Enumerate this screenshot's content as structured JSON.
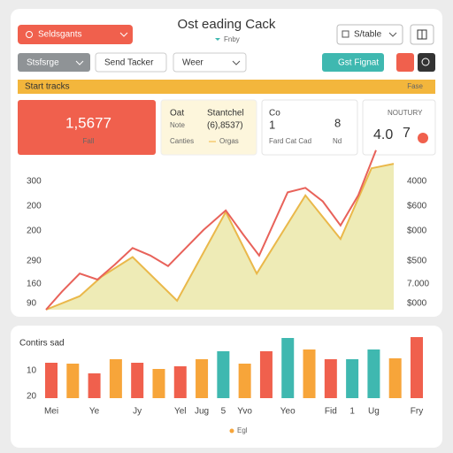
{
  "header": {
    "dropdown": "Seldsgants",
    "title": "Ost eading Cack",
    "subtitle": "Fnby",
    "view_select": "S/table"
  },
  "toolbar": {
    "filter": "Stsfsrge",
    "button": "Send Tacker",
    "period": "Weer",
    "action": "Gst Fignat"
  },
  "banner": {
    "text": "Start tracks",
    "right": "Fase"
  },
  "kpis": [
    {
      "value": "1,5677",
      "label": "Fall"
    },
    {
      "lines": [
        "Oat",
        "Note",
        "Canties"
      ],
      "detail": [
        "Stantchel",
        "(6),8537)",
        "Orgas"
      ]
    },
    {
      "lines": [
        "Co",
        "1",
        "Fard Cat Cad"
      ],
      "detail": [
        "8",
        "Nd"
      ]
    },
    {
      "title": "NOUTURY",
      "value": "4.0",
      "value2": "7"
    }
  ],
  "chart_data": [
    {
      "type": "line",
      "left_axis_labels": [
        "300",
        "200",
        "200",
        "290",
        "160",
        "90"
      ],
      "right_axis_labels": [
        "4000",
        "$600",
        "$000",
        "$500",
        "7.000",
        "$000"
      ],
      "xlim": [
        0,
        100
      ],
      "ylim": [
        0,
        110
      ],
      "series": [
        {
          "color": "#e8625a",
          "x": [
            0,
            4.6,
            9.7,
            14.8,
            19.8,
            24.9,
            30.0,
            35.1,
            40.2,
            45.3,
            51.7,
            56.7,
            61.3,
            69.5,
            74.6,
            79.6,
            84.7,
            89.8,
            94.9
          ],
          "values": [
            0,
            12,
            24,
            20,
            30,
            41,
            36,
            29,
            41,
            53,
            66,
            50,
            36,
            78,
            81,
            72,
            56,
            76,
            106
          ]
        },
        {
          "color": "#eab84a",
          "fill": "#ebe8a9",
          "x": [
            0,
            9.7,
            16.0,
            24.9,
            37.7,
            51.7,
            60.6,
            74.6,
            84.7,
            93.6,
            100
          ],
          "values": [
            0,
            9,
            22,
            35,
            6,
            65,
            24,
            76,
            47,
            94,
            97
          ]
        }
      ]
    },
    {
      "type": "bar",
      "title": "Contirs sad",
      "axis_labels": [
        "10",
        "20"
      ],
      "categories": [
        "Mei",
        null,
        "Ye",
        null,
        "Jy",
        null,
        "Yel",
        "Jug",
        "5",
        "Yvo",
        null,
        "Yeo",
        null,
        "Fid",
        "1",
        "Ug",
        null,
        "Fry"
      ],
      "ylim": [
        0,
        80
      ],
      "series": [
        {
          "name": "Egl",
          "color": "#f7a53a",
          "colors": [
            "#f0604d",
            "#f7a53a",
            "#f0604d",
            "#f7a53a",
            "#f0604d",
            "#f7a53a",
            "#f0604d",
            "#f7a53a",
            "#3fb8b0",
            "#f7a53a",
            "#f0604d",
            "#3fb8b0",
            "#f7a53a",
            "#f0604d",
            "#3fb8b0",
            "#3fb8b0",
            "#f7a53a",
            "#f0604d"
          ],
          "values": [
            40,
            39,
            28,
            44,
            40,
            33,
            36,
            44,
            53,
            39,
            53,
            68,
            55,
            44,
            44,
            55,
            45,
            69
          ]
        }
      ]
    }
  ]
}
